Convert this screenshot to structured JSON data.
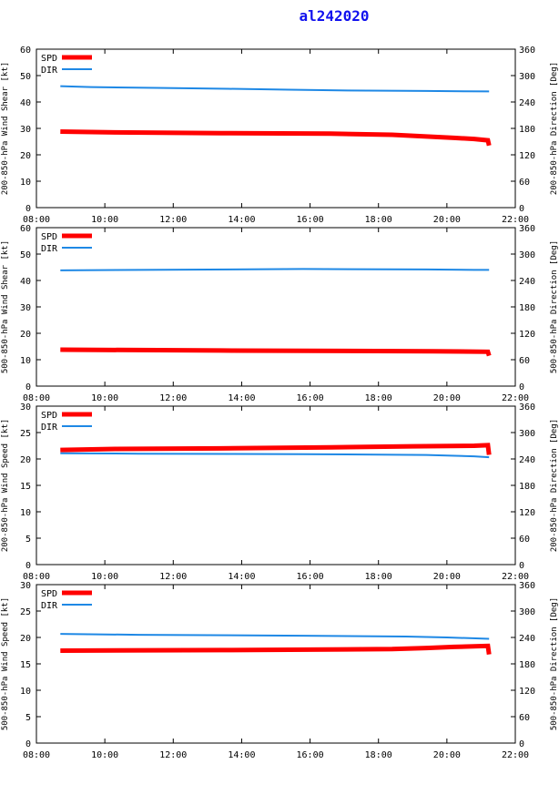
{
  "title": "al242020",
  "colors": {
    "spd": "#ff0000",
    "dir": "#1e88e5",
    "title": "#1111ee"
  },
  "chart_data": [
    {
      "type": "line",
      "ylabel": "200-850-hPa Wind Shear [kt]",
      "y2label": "200-850-hPa Direction [Deg]",
      "ylim": [
        0,
        60
      ],
      "yticks": [
        "0",
        "10",
        "20",
        "30",
        "40",
        "50",
        "60"
      ],
      "y2lim": [
        0,
        360
      ],
      "y2ticks": [
        "0",
        "60",
        "120",
        "180",
        "240",
        "300",
        "360"
      ],
      "xlim": [
        "08:00",
        "22:00"
      ],
      "xticks": [
        "08:00",
        "10:00",
        "12:00",
        "14:00",
        "16:00",
        "18:00",
        "20:00",
        "22:00"
      ],
      "legend": {
        "spd_label": "SPD",
        "dir_label": "DIR"
      },
      "series": [
        {
          "name": "SPD",
          "axis": "left",
          "x": [
            "08:42",
            "10:18",
            "13:24",
            "16:36",
            "18:24",
            "19:00",
            "19:36",
            "20:12",
            "20:48",
            "21:12",
            "21:14"
          ],
          "y": [
            28.8,
            28.5,
            28.2,
            28.0,
            27.6,
            27.2,
            26.8,
            26.4,
            26.0,
            25.5,
            23.5
          ]
        },
        {
          "name": "DIR",
          "axis": "right",
          "x": [
            "08:42",
            "09:36",
            "11:30",
            "13:36",
            "15:24",
            "17:06",
            "19:24",
            "21:14"
          ],
          "y": [
            276,
            274,
            272,
            270,
            268,
            266,
            265,
            264
          ]
        }
      ]
    },
    {
      "type": "line",
      "ylabel": "500-850-hPa Wind Shear [kt]",
      "y2label": "500-850-hPa Direction [Deg]",
      "ylim": [
        0,
        60
      ],
      "yticks": [
        "0",
        "10",
        "20",
        "30",
        "40",
        "50",
        "60"
      ],
      "y2lim": [
        0,
        360
      ],
      "y2ticks": [
        "0",
        "60",
        "120",
        "180",
        "240",
        "300",
        "360"
      ],
      "xlim": [
        "08:00",
        "22:00"
      ],
      "xticks": [
        "08:00",
        "10:00",
        "12:00",
        "14:00",
        "16:00",
        "18:00",
        "20:00",
        "22:00"
      ],
      "legend": {
        "spd_label": "SPD",
        "dir_label": "DIR"
      },
      "series": [
        {
          "name": "SPD",
          "axis": "left",
          "x": [
            "08:42",
            "13:24",
            "19:36",
            "21:12",
            "21:14"
          ],
          "y": [
            13.8,
            13.5,
            13.2,
            13.0,
            11.5
          ]
        },
        {
          "name": "DIR",
          "axis": "right",
          "x": [
            "08:42",
            "11:00",
            "15:48",
            "19:24",
            "20:48",
            "21:14"
          ],
          "y": [
            263,
            264,
            266,
            265,
            264,
            264
          ]
        }
      ]
    },
    {
      "type": "line",
      "ylabel": "200-850-hPa Wind Speed [kt]",
      "y2label": "200-850-hPa Direction [Deg]",
      "ylim": [
        0,
        30
      ],
      "yticks": [
        "0",
        "5",
        "10",
        "15",
        "20",
        "25",
        "30"
      ],
      "y2lim": [
        0,
        360
      ],
      "y2ticks": [
        "0",
        "60",
        "120",
        "180",
        "240",
        "300",
        "360"
      ],
      "xlim": [
        "08:00",
        "22:00"
      ],
      "xticks": [
        "08:00",
        "10:00",
        "12:00",
        "14:00",
        "16:00",
        "18:00",
        "20:00",
        "22:00"
      ],
      "legend": {
        "spd_label": "SPD",
        "dir_label": "DIR"
      },
      "series": [
        {
          "name": "SPD",
          "axis": "left",
          "x": [
            "08:42",
            "10:18",
            "13:24",
            "16:36",
            "19:00",
            "20:48",
            "21:12",
            "21:14"
          ],
          "y": [
            21.7,
            21.9,
            22.0,
            22.2,
            22.4,
            22.5,
            22.6,
            20.8
          ]
        },
        {
          "name": "DIR",
          "axis": "right",
          "x": [
            "08:42",
            "11:00",
            "15:48",
            "19:24",
            "20:48",
            "21:14"
          ],
          "y": [
            253,
            252,
            251,
            249,
            246,
            244
          ]
        }
      ]
    },
    {
      "type": "line",
      "ylabel": "500-850-hPa Wind Speed [kt]",
      "y2label": "500-850-hPa Direction [Deg]",
      "ylim": [
        0,
        30
      ],
      "yticks": [
        "0",
        "5",
        "10",
        "15",
        "20",
        "25",
        "30"
      ],
      "y2lim": [
        0,
        360
      ],
      "y2ticks": [
        "0",
        "60",
        "120",
        "180",
        "240",
        "300",
        "360"
      ],
      "xlim": [
        "08:00",
        "22:00"
      ],
      "xticks": [
        "08:00",
        "10:00",
        "12:00",
        "14:00",
        "16:00",
        "18:00",
        "20:00",
        "22:00"
      ],
      "legend": {
        "spd_label": "SPD",
        "dir_label": "DIR"
      },
      "series": [
        {
          "name": "SPD",
          "axis": "left",
          "x": [
            "08:42",
            "13:24",
            "18:24",
            "19:24",
            "20:12",
            "21:12",
            "21:14"
          ],
          "y": [
            17.5,
            17.6,
            17.8,
            18.0,
            18.2,
            18.4,
            16.8
          ]
        },
        {
          "name": "DIR",
          "axis": "right",
          "x": [
            "08:42",
            "11:00",
            "15:48",
            "18:48",
            "20:00",
            "21:14"
          ],
          "y": [
            248,
            246,
            244,
            242,
            240,
            237
          ]
        }
      ]
    }
  ]
}
